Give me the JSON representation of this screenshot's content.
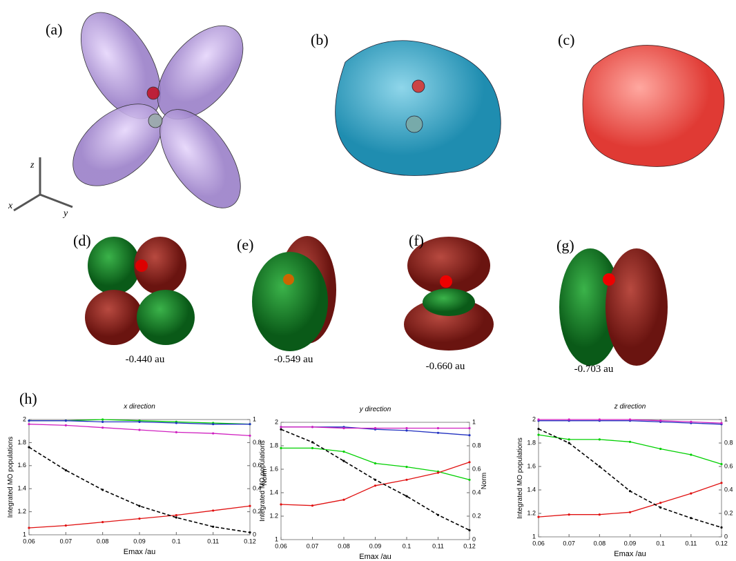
{
  "labels": {
    "panels": [
      "(a)",
      "(b)",
      "(c)",
      "(d)",
      "(e)",
      "(f)",
      "(g)",
      "(h)"
    ],
    "axes": [
      "z",
      "x",
      "y"
    ],
    "energies": [
      "-0.440 au",
      "-0.549 au",
      "-0.660 au",
      "-0.703 au"
    ]
  },
  "chart_data": [
    {
      "type": "line",
      "title": "x direction",
      "xlabel": "Emax /au",
      "ylabel": "Integrated MO populations",
      "y2label": "Norm",
      "x": [
        0.06,
        0.07,
        0.08,
        0.09,
        0.1,
        0.11,
        0.12
      ],
      "xlim": [
        0.06,
        0.12
      ],
      "xticks": [
        0.06,
        0.07,
        0.08,
        0.09,
        0.1,
        0.11,
        0.12
      ],
      "ylim": [
        1,
        2
      ],
      "yticks": [
        1,
        1.2,
        1.4,
        1.6,
        1.8,
        2
      ],
      "y2lim": [
        0,
        1
      ],
      "y2ticks": [
        0,
        0.2,
        0.4,
        0.6,
        0.8,
        1
      ],
      "series": [
        {
          "color": "#00d000",
          "values": [
            1.99,
            1.99,
            2.0,
            1.99,
            1.98,
            1.97,
            1.96
          ]
        },
        {
          "color": "#2030c0",
          "values": [
            1.99,
            1.99,
            1.98,
            1.98,
            1.97,
            1.96,
            1.96
          ]
        },
        {
          "color": "#d020c0",
          "values": [
            1.96,
            1.95,
            1.93,
            1.91,
            1.89,
            1.88,
            1.86
          ]
        },
        {
          "color": "#e01010",
          "values": [
            1.06,
            1.08,
            1.11,
            1.14,
            1.17,
            1.21,
            1.25
          ]
        },
        {
          "color": "#000000",
          "dashed": true,
          "axis": "y2",
          "values": [
            0.76,
            0.56,
            0.39,
            0.25,
            0.15,
            0.07,
            0.02
          ]
        }
      ]
    },
    {
      "type": "line",
      "title": "y direction",
      "xlabel": "Emax /au",
      "ylabel": "Integrated MO populations",
      "y2label": "Norm",
      "x": [
        0.06,
        0.07,
        0.08,
        0.09,
        0.1,
        0.11,
        0.12
      ],
      "xlim": [
        0.06,
        0.12
      ],
      "xticks": [
        0.06,
        0.07,
        0.08,
        0.09,
        0.1,
        0.11,
        0.12
      ],
      "ylim": [
        1,
        2
      ],
      "yticks": [
        1,
        1.2,
        1.4,
        1.6,
        1.8,
        2
      ],
      "y2lim": [
        0,
        1
      ],
      "y2ticks": [
        0,
        0.2,
        0.4,
        0.6,
        0.8,
        1
      ],
      "series": [
        {
          "color": "#2030c0",
          "values": [
            1.96,
            1.96,
            1.96,
            1.94,
            1.93,
            1.91,
            1.89
          ]
        },
        {
          "color": "#d020c0",
          "values": [
            1.96,
            1.96,
            1.95,
            1.95,
            1.95,
            1.95,
            1.95
          ]
        },
        {
          "color": "#00d000",
          "values": [
            1.78,
            1.78,
            1.75,
            1.65,
            1.62,
            1.58,
            1.51
          ]
        },
        {
          "color": "#e01010",
          "values": [
            1.3,
            1.29,
            1.34,
            1.46,
            1.51,
            1.57,
            1.66
          ]
        },
        {
          "color": "#000000",
          "dashed": true,
          "axis": "y2",
          "values": [
            0.94,
            0.83,
            0.67,
            0.51,
            0.37,
            0.21,
            0.08
          ]
        }
      ]
    },
    {
      "type": "line",
      "title": "z direction",
      "xlabel": "Emax /au",
      "ylabel": "Integrated MO populations",
      "x": [
        0.06,
        0.07,
        0.08,
        0.09,
        0.1,
        0.11,
        0.12
      ],
      "xlim": [
        0.06,
        0.12
      ],
      "xticks": [
        0.06,
        0.07,
        0.08,
        0.09,
        0.1,
        0.11,
        0.12
      ],
      "ylim": [
        1,
        2
      ],
      "yticks": [
        1,
        1.2,
        1.4,
        1.6,
        1.8,
        2
      ],
      "y2lim": [
        0,
        1
      ],
      "y2ticks": [
        0,
        0.2,
        0.4,
        0.6,
        0.8,
        1
      ],
      "series": [
        {
          "color": "#2030c0",
          "values": [
            1.99,
            1.99,
            1.99,
            1.99,
            1.98,
            1.97,
            1.96
          ]
        },
        {
          "color": "#d020c0",
          "values": [
            2.0,
            2.0,
            2.0,
            2.0,
            1.99,
            1.98,
            1.97
          ]
        },
        {
          "color": "#00d000",
          "values": [
            1.87,
            1.83,
            1.83,
            1.81,
            1.75,
            1.7,
            1.62
          ]
        },
        {
          "color": "#e01010",
          "values": [
            1.17,
            1.19,
            1.19,
            1.21,
            1.29,
            1.37,
            1.46
          ]
        },
        {
          "color": "#000000",
          "dashed": true,
          "axis": "y2",
          "values": [
            0.92,
            0.8,
            0.6,
            0.39,
            0.25,
            0.16,
            0.08
          ]
        }
      ]
    }
  ]
}
